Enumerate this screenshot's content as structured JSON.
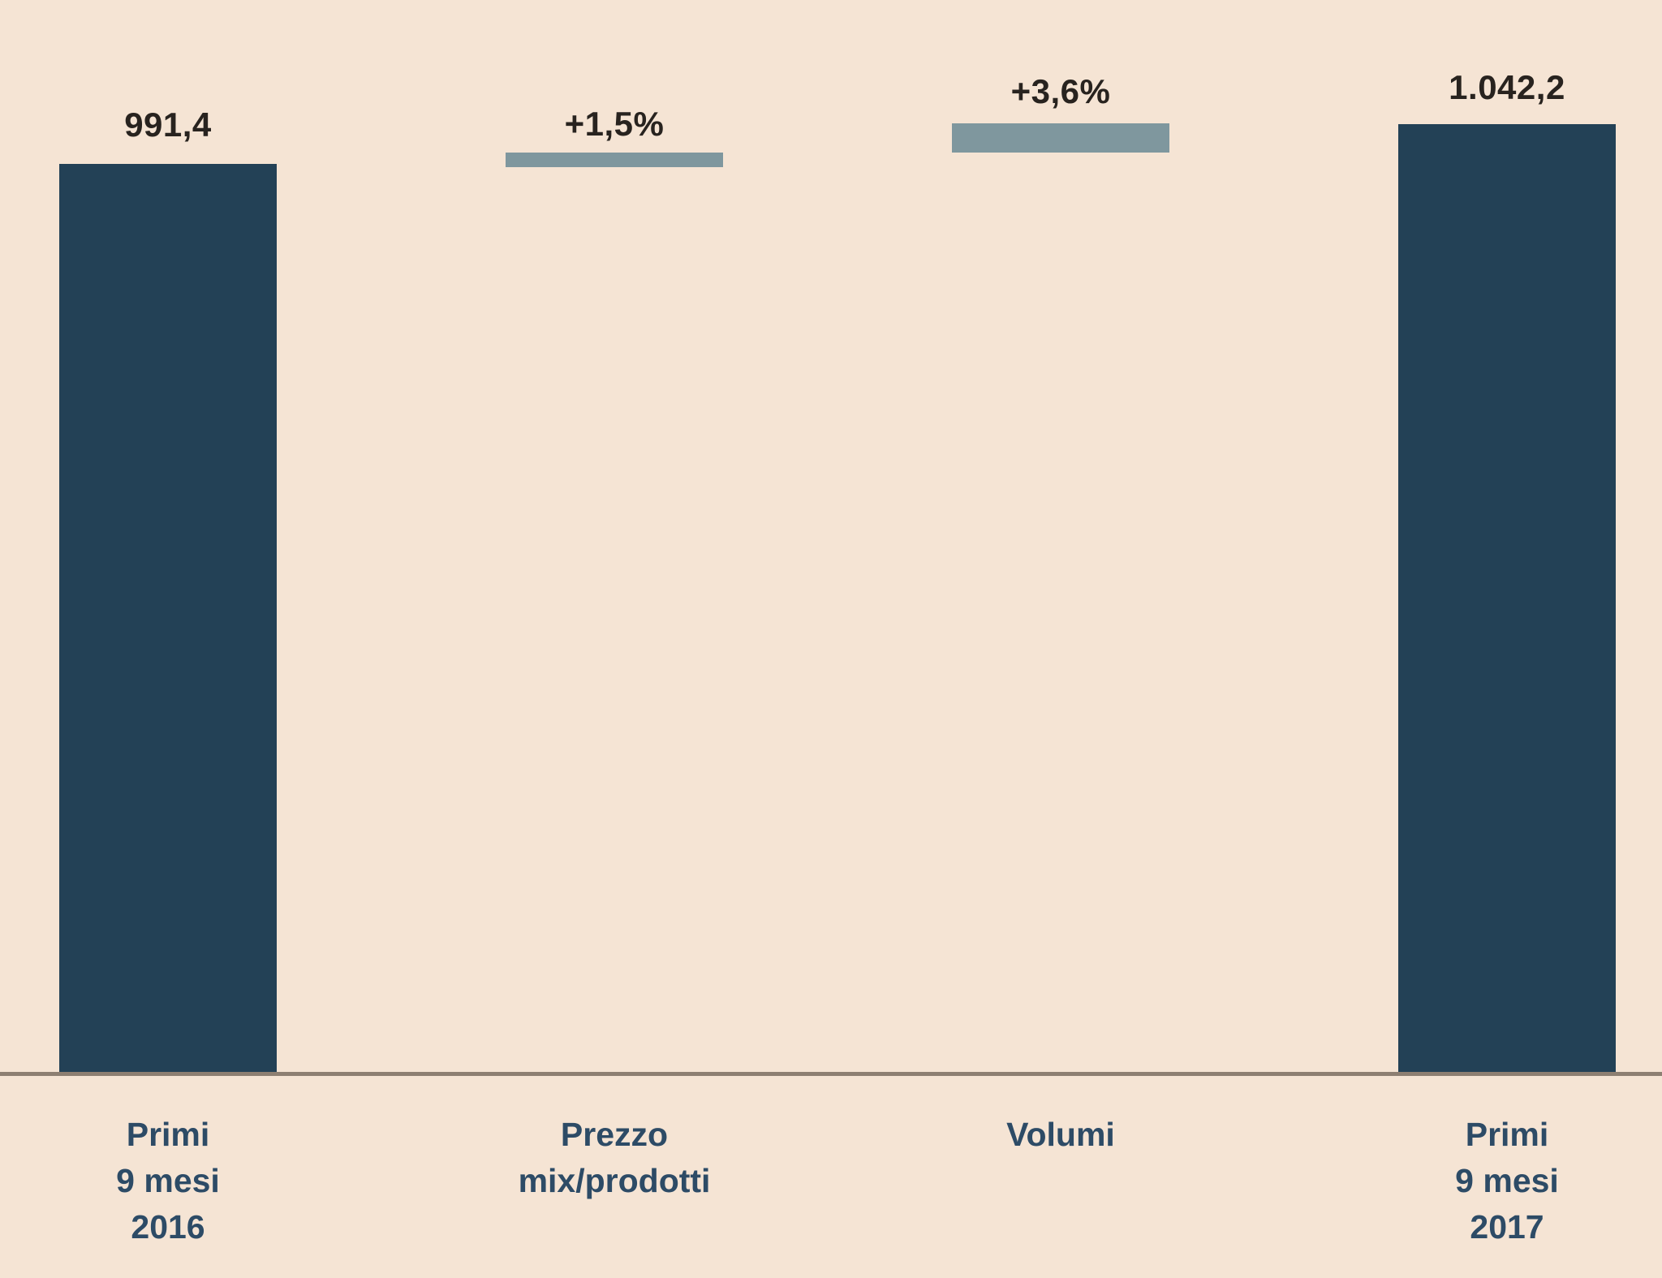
{
  "chart_data": {
    "type": "bar",
    "subtype": "waterfall",
    "orientation": "vertical",
    "categories": [
      "Primi 9 mesi 2016",
      "Prezzo mix/prodotti",
      "Volumi",
      "Primi 9 mesi 2017"
    ],
    "columns": [
      {
        "category": "Primi 9 mesi 2016",
        "category_lines": "Primi\n9 mesi\n2016",
        "value_label": "991,4",
        "value": 991.4,
        "role": "total"
      },
      {
        "category": "Prezzo mix/prodotti",
        "category_lines": "Prezzo\nmix/prodotti",
        "value_label": "+1,5%",
        "value_percent": 1.5,
        "role": "increase"
      },
      {
        "category": "Volumi",
        "category_lines": "Volumi",
        "value_label": "+3,6%",
        "value_percent": 3.6,
        "role": "increase"
      },
      {
        "category": "Primi 9 mesi 2017",
        "category_lines": "Primi\n9 mesi\n2017",
        "value_label": "1.042,2",
        "value": 1042.2,
        "role": "total"
      }
    ],
    "colors": {
      "background": "#f5e4d4",
      "total_bar": "#234156",
      "delta_bar": "#7f979e",
      "baseline_line": "#8d7f72",
      "value_text": "#28231f",
      "category_text": "#2d4b66"
    },
    "layout_hints": {
      "grid": false,
      "legend": false,
      "value_labels_position": "above bars",
      "category_labels_position": "below baseline"
    }
  }
}
